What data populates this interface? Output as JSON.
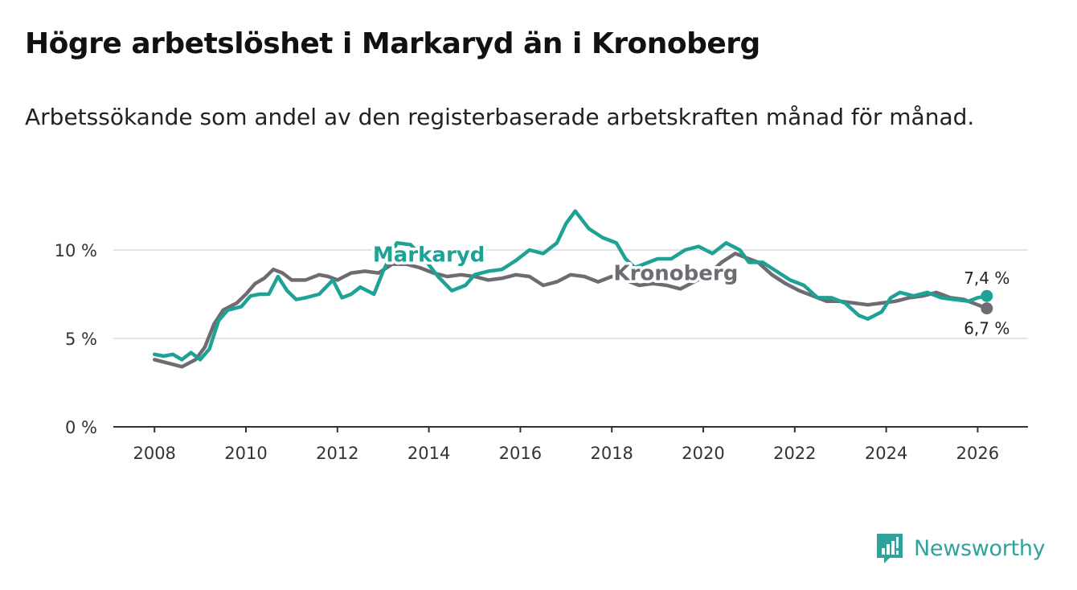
{
  "title": "Högre arbetslöshet i Markaryd än i Kronoberg",
  "subtitle": "Arbetssökande som andel av den registerbaserade arbetskraften månad för månad.",
  "brand": {
    "name": "Newsworthy",
    "icon": "bar-chart-logo-icon",
    "color": "#2fa39b"
  },
  "chart_data": {
    "type": "line",
    "title": "Högre arbetslöshet i Markaryd än i Kronoberg",
    "xlabel": "",
    "ylabel": "",
    "xlim": [
      2007.1,
      2027.1
    ],
    "ylim": [
      0,
      10.5
    ],
    "x_ticks": [
      2008,
      2010,
      2012,
      2014,
      2016,
      2018,
      2020,
      2022,
      2024,
      2026
    ],
    "x_tick_labels": [
      "2008",
      "2010",
      "2012",
      "2014",
      "2016",
      "2018",
      "2020",
      "2022",
      "2024",
      "2026"
    ],
    "y_ticks": [
      0,
      5,
      10
    ],
    "y_tick_labels": [
      "0 %",
      "5 %",
      "10 %"
    ],
    "grid": true,
    "series": [
      {
        "name": "Kronoberg",
        "label": "Kronoberg",
        "color": "#6e6c72",
        "label_x": 2019.4,
        "label_y": 8.3,
        "end_label": "6,7 %",
        "points": [
          [
            2008.0,
            3.8
          ],
          [
            2008.3,
            3.6
          ],
          [
            2008.6,
            3.4
          ],
          [
            2008.9,
            3.8
          ],
          [
            2009.1,
            4.5
          ],
          [
            2009.3,
            5.8
          ],
          [
            2009.5,
            6.6
          ],
          [
            2009.8,
            7.0
          ],
          [
            2010.0,
            7.5
          ],
          [
            2010.2,
            8.1
          ],
          [
            2010.4,
            8.4
          ],
          [
            2010.6,
            8.9
          ],
          [
            2010.8,
            8.7
          ],
          [
            2011.0,
            8.3
          ],
          [
            2011.3,
            8.3
          ],
          [
            2011.6,
            8.6
          ],
          [
            2011.8,
            8.5
          ],
          [
            2012.0,
            8.3
          ],
          [
            2012.3,
            8.7
          ],
          [
            2012.6,
            8.8
          ],
          [
            2012.9,
            8.7
          ],
          [
            2013.2,
            9.2
          ],
          [
            2013.5,
            9.2
          ],
          [
            2013.8,
            9.0
          ],
          [
            2014.1,
            8.7
          ],
          [
            2014.4,
            8.5
          ],
          [
            2014.7,
            8.6
          ],
          [
            2015.0,
            8.5
          ],
          [
            2015.3,
            8.3
          ],
          [
            2015.6,
            8.4
          ],
          [
            2015.9,
            8.6
          ],
          [
            2016.2,
            8.5
          ],
          [
            2016.5,
            8.0
          ],
          [
            2016.8,
            8.2
          ],
          [
            2017.1,
            8.6
          ],
          [
            2017.4,
            8.5
          ],
          [
            2017.7,
            8.2
          ],
          [
            2018.0,
            8.5
          ],
          [
            2018.3,
            8.3
          ],
          [
            2018.6,
            8.0
          ],
          [
            2018.9,
            8.1
          ],
          [
            2019.2,
            8.0
          ],
          [
            2019.5,
            7.8
          ],
          [
            2019.8,
            8.2
          ],
          [
            2020.1,
            8.6
          ],
          [
            2020.4,
            9.3
          ],
          [
            2020.7,
            9.8
          ],
          [
            2020.9,
            9.6
          ],
          [
            2021.2,
            9.3
          ],
          [
            2021.5,
            8.6
          ],
          [
            2021.8,
            8.1
          ],
          [
            2022.1,
            7.7
          ],
          [
            2022.4,
            7.4
          ],
          [
            2022.7,
            7.1
          ],
          [
            2023.0,
            7.1
          ],
          [
            2023.3,
            7.0
          ],
          [
            2023.6,
            6.9
          ],
          [
            2023.9,
            7.0
          ],
          [
            2024.2,
            7.1
          ],
          [
            2024.5,
            7.3
          ],
          [
            2024.8,
            7.4
          ],
          [
            2025.1,
            7.6
          ],
          [
            2025.4,
            7.3
          ],
          [
            2025.7,
            7.2
          ],
          [
            2026.0,
            6.9
          ],
          [
            2026.2,
            6.7
          ]
        ]
      },
      {
        "name": "Markaryd",
        "label": "Markaryd",
        "color": "#1ea296",
        "label_x": 2014.0,
        "label_y": 9.35,
        "end_label": "7,4 %",
        "points": [
          [
            2008.0,
            4.1
          ],
          [
            2008.2,
            4.0
          ],
          [
            2008.4,
            4.1
          ],
          [
            2008.6,
            3.8
          ],
          [
            2008.8,
            4.2
          ],
          [
            2009.0,
            3.8
          ],
          [
            2009.2,
            4.4
          ],
          [
            2009.4,
            6.0
          ],
          [
            2009.6,
            6.6
          ],
          [
            2009.9,
            6.8
          ],
          [
            2010.1,
            7.4
          ],
          [
            2010.3,
            7.5
          ],
          [
            2010.5,
            7.5
          ],
          [
            2010.7,
            8.5
          ],
          [
            2010.9,
            7.7
          ],
          [
            2011.1,
            7.2
          ],
          [
            2011.3,
            7.3
          ],
          [
            2011.6,
            7.5
          ],
          [
            2011.9,
            8.3
          ],
          [
            2012.1,
            7.3
          ],
          [
            2012.3,
            7.5
          ],
          [
            2012.5,
            7.9
          ],
          [
            2012.8,
            7.5
          ],
          [
            2013.0,
            8.8
          ],
          [
            2013.3,
            10.4
          ],
          [
            2013.6,
            10.3
          ],
          [
            2013.9,
            9.5
          ],
          [
            2014.2,
            8.5
          ],
          [
            2014.5,
            7.7
          ],
          [
            2014.8,
            8.0
          ],
          [
            2015.0,
            8.6
          ],
          [
            2015.3,
            8.8
          ],
          [
            2015.6,
            8.9
          ],
          [
            2015.9,
            9.4
          ],
          [
            2016.2,
            10.0
          ],
          [
            2016.5,
            9.8
          ],
          [
            2016.8,
            10.4
          ],
          [
            2017.0,
            11.5
          ],
          [
            2017.2,
            12.2
          ],
          [
            2017.5,
            11.2
          ],
          [
            2017.8,
            10.7
          ],
          [
            2018.1,
            10.4
          ],
          [
            2018.3,
            9.5
          ],
          [
            2018.5,
            9.0
          ],
          [
            2018.7,
            9.2
          ],
          [
            2019.0,
            9.5
          ],
          [
            2019.3,
            9.5
          ],
          [
            2019.6,
            10.0
          ],
          [
            2019.9,
            10.2
          ],
          [
            2020.2,
            9.8
          ],
          [
            2020.5,
            10.4
          ],
          [
            2020.8,
            10.0
          ],
          [
            2021.0,
            9.3
          ],
          [
            2021.3,
            9.3
          ],
          [
            2021.6,
            8.8
          ],
          [
            2021.9,
            8.3
          ],
          [
            2022.2,
            8.0
          ],
          [
            2022.5,
            7.3
          ],
          [
            2022.8,
            7.3
          ],
          [
            2023.1,
            7.0
          ],
          [
            2023.4,
            6.3
          ],
          [
            2023.6,
            6.1
          ],
          [
            2023.9,
            6.5
          ],
          [
            2024.1,
            7.3
          ],
          [
            2024.3,
            7.6
          ],
          [
            2024.6,
            7.4
          ],
          [
            2024.9,
            7.6
          ],
          [
            2025.2,
            7.3
          ],
          [
            2025.5,
            7.2
          ],
          [
            2025.8,
            7.1
          ],
          [
            2026.0,
            7.3
          ],
          [
            2026.2,
            7.4
          ]
        ]
      }
    ]
  }
}
